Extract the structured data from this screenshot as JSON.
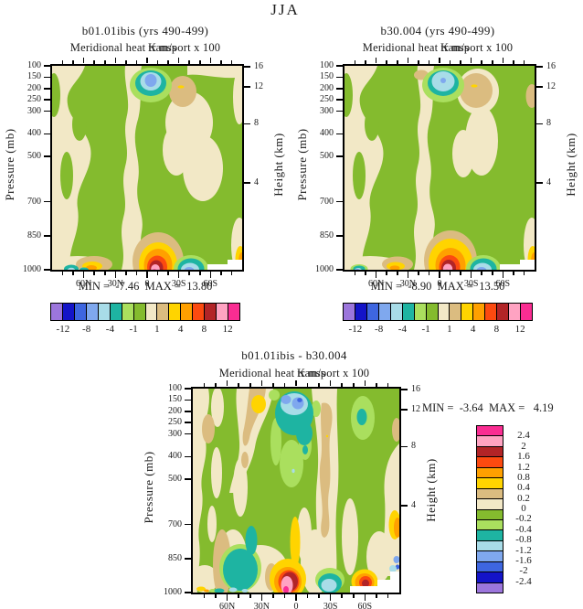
{
  "figure": {
    "title": "JJA",
    "season": "JJA",
    "background": "#ffffff"
  },
  "colorbar_colors": [
    "#9C76DC",
    "#1414C8",
    "#3E66E0",
    "#7FA8EE",
    "#A8DCE8",
    "#1EB4A2",
    "#AADF5E",
    "#84BB2E",
    "#F2E8C6",
    "#DBBC80",
    "#FFD400",
    "#FFA000",
    "#FC4A10",
    "#B22427",
    "#FFA3C2",
    "#FA2D92"
  ],
  "panels": [
    {
      "title": "b01.01ibis (yrs 490-499)",
      "subtitle": "Meridional heat transport x 100",
      "units": "K m/s",
      "ylabel_left": "Pressure (mb)",
      "ylabel_right": "Height (km)",
      "pressure_ticks": [
        100,
        150,
        200,
        250,
        300,
        400,
        500,
        700,
        850,
        1000
      ],
      "height_ticks": [
        16,
        12,
        8,
        4
      ],
      "lat_labels": [
        "60N",
        "30N",
        "0",
        "30S",
        "60S"
      ],
      "stats": "MIN =  -7.46  MAX =  13.80",
      "colorbar": {
        "orientation": "horizontal",
        "labels": [
          "-12",
          "-8",
          "-4",
          "-1",
          "1",
          "4",
          "8",
          "12"
        ]
      }
    },
    {
      "title": "b30.004 (yrs 490-499)",
      "subtitle": "Meridional heat transport x 100",
      "units": "K m/s",
      "ylabel_left": "Pressure (mb)",
      "ylabel_right": "Height (km)",
      "pressure_ticks": [
        100,
        150,
        200,
        250,
        300,
        400,
        500,
        700,
        850,
        1000
      ],
      "height_ticks": [
        16,
        12,
        8,
        4
      ],
      "lat_labels": [
        "60N",
        "30N",
        "0",
        "30S",
        "60S"
      ],
      "stats": "MIN =  -8.90  MAX =  13.50",
      "colorbar": {
        "orientation": "horizontal",
        "labels": [
          "-12",
          "-8",
          "-4",
          "-1",
          "1",
          "4",
          "8",
          "12"
        ]
      }
    },
    {
      "title": "b01.01ibis - b30.004",
      "subtitle": "Meridional heat transport x 100",
      "units": "K m/s",
      "ylabel_left": "Pressure (mb)",
      "ylabel_right": "Height (km)",
      "pressure_ticks": [
        100,
        150,
        200,
        250,
        300,
        400,
        500,
        700,
        850,
        1000
      ],
      "height_ticks": [
        16,
        12,
        8,
        4
      ],
      "lat_labels": [
        "60N",
        "30N",
        "0",
        "30S",
        "60S"
      ],
      "stats": "MIN =  -3.64  MAX =   4.19",
      "colorbar": {
        "orientation": "vertical",
        "labels": [
          "2.4",
          "2",
          "1.6",
          "1.2",
          "0.8",
          "0.4",
          "0.2",
          "0",
          "-0.2",
          "-0.4",
          "-0.8",
          "-1.2",
          "-1.6",
          "-2",
          "-2.4"
        ]
      }
    }
  ],
  "chart_data": [
    {
      "type": "heatmap",
      "subtype": "filled-contour latitude-pressure section",
      "title": "b01.01ibis (yrs 490-499)",
      "xlabel": "latitude",
      "x_range": [
        "90N",
        "90S"
      ],
      "x_tick_labels": [
        "60N",
        "30N",
        "0",
        "30S",
        "60S"
      ],
      "minor_tick_spacing_deg": 10,
      "ylabel": "Pressure (mb)",
      "y_ticks": [
        100,
        150,
        200,
        250,
        300,
        400,
        500,
        700,
        850,
        1000
      ],
      "y_range": [
        100,
        1000
      ],
      "y_scale": "linear",
      "ylabel_right": "Height (km)",
      "y_ticks_right": [
        16,
        12,
        8,
        4
      ],
      "quantity": "Meridional heat transport x 100 (K m/s)",
      "min": -7.46,
      "max": 13.8,
      "colorbar_labeled_levels": [
        -12,
        -8,
        -4,
        -1,
        1,
        4,
        8,
        12
      ],
      "n_color_cells": 16,
      "legend_position": "below",
      "features": [
        "field mostly near zero: cream (0..1) and green (-1..0) bands",
        "negative cell with blue core (about -6 to -8) near 0-5S at 150-250 mb",
        "weak positive tan oval (1..2) near 30-35S at 150-300 mb",
        "strong positive maximum (pink/magenta, >12) near 5-10S at 950-1000 mb",
        "negative cyan/blue cell near 40S at 950-1000 mb",
        "warm tan/yellow/orange patch near 30N at 950-1000 mb; teal specks near 70N at 1000 mb",
        "positive streak at 90S edge below 850 mb; white terrain mask near 60-90S at 1000 mb"
      ]
    },
    {
      "type": "heatmap",
      "subtype": "filled-contour latitude-pressure section",
      "title": "b30.004 (yrs 490-499)",
      "xlabel": "latitude",
      "x_range": [
        "90N",
        "90S"
      ],
      "x_tick_labels": [
        "60N",
        "30N",
        "0",
        "30S",
        "60S"
      ],
      "minor_tick_spacing_deg": 10,
      "ylabel": "Pressure (mb)",
      "y_ticks": [
        100,
        150,
        200,
        250,
        300,
        400,
        500,
        700,
        850,
        1000
      ],
      "y_range": [
        100,
        1000
      ],
      "y_scale": "linear",
      "ylabel_right": "Height (km)",
      "y_ticks_right": [
        16,
        12,
        8,
        4
      ],
      "quantity": "Meridional heat transport x 100 (K m/s)",
      "min": -8.9,
      "max": 13.5,
      "colorbar_labeled_levels": [
        -12,
        -8,
        -4,
        -1,
        1,
        4,
        8,
        12
      ],
      "n_color_cells": 16,
      "legend_position": "below",
      "features": [
        "same layout as b01.01ibis panel",
        "negative cell near 0-5S at 150-250 mb with small cornflower dot core",
        "larger tan oval (1..2) near 30S at 150-300 mb inside cream halo",
        "positive maximum near 5-10S at 950-1000 mb with larger yellow ring",
        "negative cyan cell near 40S at 1000 mb; small blue speck near 80N at 1000 mb",
        "white terrain mask near 60-90S at 1000 mb"
      ]
    },
    {
      "type": "heatmap",
      "subtype": "filled-contour latitude-pressure difference section",
      "title": "b01.01ibis - b30.004",
      "xlabel": "latitude",
      "x_range": [
        "90N",
        "90S"
      ],
      "x_tick_labels": [
        "60N",
        "30N",
        "0",
        "30S",
        "60S"
      ],
      "minor_tick_spacing_deg": 10,
      "ylabel": "Pressure (mb)",
      "y_ticks": [
        100,
        150,
        200,
        250,
        300,
        400,
        500,
        700,
        850,
        1000
      ],
      "y_range": [
        100,
        1000
      ],
      "y_scale": "linear",
      "ylabel_right": "Height (km)",
      "y_ticks_right": [
        16,
        12,
        8,
        4
      ],
      "quantity": "Meridional heat transport x 100 (K m/s), difference",
      "min": -3.64,
      "max": 4.19,
      "colorbar_labeled_levels": [
        2.4,
        2,
        1.6,
        1.2,
        0.8,
        0.4,
        0.2,
        0,
        -0.2,
        -0.4,
        -0.8,
        -1.2,
        -1.6,
        -2,
        -2.4
      ],
      "n_color_cells": 16,
      "legend_position": "right",
      "features": [
        "mottled near-zero field with vertical cream/tan streaks in green background",
        "yellow positive cell (0.4..0.8) near 28N at 130-210 mb inside tan band",
        "negative complex (teal/cyan with cornflower and royal-blue cores, below -1.6) near 15N-5S at 100-300 mb",
        "teal negative cell near 35-55N at 850-1000 mb with pale-cyan specks",
        "positive maximum (large pink core, ring of dark red/orange) near 10N-0 at 880-1000 mb",
        "yellow positive streak near 0-5S from 550-800 mb",
        "pale-cyan negative cell near 18-30S at 900-1000 mb",
        "positive cell with dark-red core near 60S at 850-1000 mb",
        "light-green negative oval with teal drop near 55-65S at 150-350 mb",
        "orange/yellow streak at 85-90S near 600-750 mb; blue specks at 90S edge near 900-1000 mb",
        "white terrain staircase mask 50-90S below about 950 mb"
      ]
    }
  ]
}
